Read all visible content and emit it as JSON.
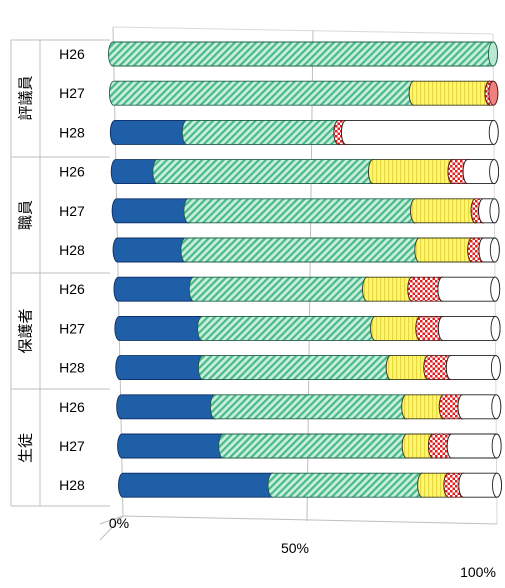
{
  "chart_data": {
    "type": "bar",
    "orientation": "horizontal",
    "stacked": "percent",
    "title": "",
    "xlabel": "",
    "ylabel": "",
    "xlim": [
      0,
      100
    ],
    "x_ticks": [
      "0%",
      "50%",
      "100%"
    ],
    "legend": "none",
    "groups": [
      {
        "label": "評議員",
        "rows": [
          "H26",
          "H27",
          "H28"
        ]
      },
      {
        "label": "職員",
        "rows": [
          "H26",
          "H27",
          "H28"
        ]
      },
      {
        "label": "保護者",
        "rows": [
          "H26",
          "H27",
          "H28"
        ]
      },
      {
        "label": "生徒",
        "rows": [
          "H26",
          "H27",
          "H28"
        ]
      }
    ],
    "categories": [
      "評議員 H26",
      "評議員 H27",
      "評議員 H28",
      "職員 H26",
      "職員 H27",
      "職員 H28",
      "保護者 H26",
      "保護者 H27",
      "保護者 H28",
      "生徒 H26",
      "生徒 H27",
      "生徒 H28"
    ],
    "series": [
      {
        "color": "#1f5fa8",
        "pattern": "solid",
        "values": [
          0,
          0,
          19,
          11,
          19,
          18,
          20,
          22,
          22,
          25,
          27,
          40
        ]
      },
      {
        "color": "#8fdcbc",
        "pattern": "diagonal-stripes",
        "values": [
          100,
          79,
          40,
          57,
          60,
          62,
          46,
          46,
          50,
          51,
          49,
          40
        ]
      },
      {
        "color": "#fff36a",
        "pattern": "vertical-stripes",
        "values": [
          0,
          20,
          0,
          21,
          16,
          14,
          12,
          12,
          10,
          10,
          7,
          7
        ]
      },
      {
        "color": "#e02020",
        "pattern": "checker",
        "values": [
          0,
          1,
          2,
          4,
          2,
          3,
          8,
          6,
          6,
          5,
          5,
          4
        ]
      },
      {
        "color": "#ffffff",
        "pattern": "white",
        "values": [
          0,
          0,
          39,
          7,
          3,
          3,
          14,
          14,
          12,
          9,
          12,
          9
        ]
      }
    ]
  }
}
